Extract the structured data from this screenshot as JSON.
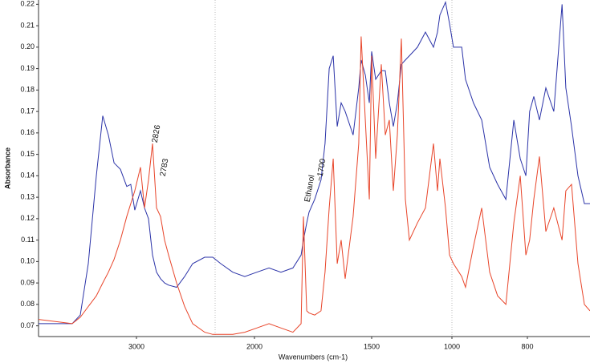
{
  "chart_data": {
    "type": "line",
    "xlabel": "Wavenumbers (cm-1)",
    "ylabel": "Absorbance",
    "xlim": [
      3830,
      634
    ],
    "xticks": [
      3000,
      2000,
      1500,
      1000,
      800
    ],
    "ylim": [
      0.065,
      0.222
    ],
    "yticks": [
      0.07,
      0.08,
      0.09,
      {
        "value": 0.1,
        "label": "0.10"
      },
      0.11,
      0.12,
      0.13,
      0.14,
      0.15,
      0.16,
      0.17,
      0.18,
      0.19,
      {
        "value": 0.2,
        "label": "0.20"
      },
      0.21,
      0.22
    ],
    "annotations": [
      "2826",
      "2783",
      "Ethanol",
      "~1700"
    ],
    "x": [
      3830,
      3544,
      3476,
      3408,
      3340,
      3286,
      3238,
      3190,
      3136,
      3082,
      3048,
      3014,
      2966,
      2932,
      2898,
      2864,
      2830,
      2796,
      2762,
      2728,
      2660,
      2592,
      2524,
      2422,
      2354,
      2286,
      2184,
      2082,
      1990,
      1938,
      1887,
      1836,
      1801,
      1791,
      1777,
      1767,
      1743,
      1716,
      1699,
      1681,
      1664,
      1647,
      1630,
      1613,
      1579,
      1555,
      1545,
      1527,
      1510,
      1500,
      1475,
      1440,
      1415,
      1390,
      1365,
      1340,
      1315,
      1290,
      1265,
      1215,
      1165,
      1115,
      1090,
      1075,
      1040,
      1015,
      996,
      974,
      964,
      943,
      921,
      900,
      879,
      857,
      836,
      819,
      804,
      794,
      783,
      768,
      751,
      730,
      708,
      698,
      683,
      666,
      649,
      634
    ],
    "series": [
      {
        "color": "#2b33a8",
        "values": [
          0.071,
          0.071,
          0.075,
          0.099,
          0.14,
          0.168,
          0.159,
          0.146,
          0.143,
          0.135,
          0.136,
          0.124,
          0.133,
          0.125,
          0.12,
          0.103,
          0.095,
          0.092,
          0.09,
          0.089,
          0.088,
          0.093,
          0.099,
          0.102,
          0.102,
          0.099,
          0.095,
          0.093,
          0.095,
          0.097,
          0.095,
          0.097,
          0.103,
          0.11,
          0.118,
          0.123,
          0.129,
          0.138,
          0.155,
          0.19,
          0.196,
          0.163,
          0.174,
          0.17,
          0.159,
          0.181,
          0.194,
          0.187,
          0.174,
          0.198,
          0.185,
          0.189,
          0.189,
          0.174,
          0.163,
          0.174,
          0.192,
          0.194,
          0.196,
          0.2,
          0.207,
          0.2,
          0.207,
          0.215,
          0.221,
          0.211,
          0.2,
          0.2,
          0.185,
          0.174,
          0.166,
          0.144,
          0.136,
          0.129,
          0.166,
          0.148,
          0.14,
          0.17,
          0.177,
          0.166,
          0.181,
          0.17,
          0.22,
          0.181,
          0.163,
          0.14,
          0.127,
          0.127
        ]
      },
      {
        "color": "#e8452a",
        "values": [
          0.073,
          0.071,
          0.074,
          0.079,
          0.084,
          0.09,
          0.095,
          0.101,
          0.11,
          0.121,
          0.127,
          0.133,
          0.144,
          0.125,
          0.138,
          0.155,
          0.125,
          0.121,
          0.11,
          0.103,
          0.09,
          0.079,
          0.071,
          0.067,
          0.066,
          0.066,
          0.066,
          0.067,
          0.069,
          0.071,
          0.069,
          0.067,
          0.071,
          0.121,
          0.077,
          0.076,
          0.075,
          0.077,
          0.095,
          0.125,
          0.148,
          0.099,
          0.11,
          0.092,
          0.121,
          0.155,
          0.205,
          0.166,
          0.129,
          0.196,
          0.148,
          0.192,
          0.159,
          0.166,
          0.133,
          0.159,
          0.204,
          0.129,
          0.11,
          0.118,
          0.125,
          0.155,
          0.133,
          0.148,
          0.125,
          0.103,
          0.099,
          0.093,
          0.088,
          0.107,
          0.125,
          0.095,
          0.084,
          0.08,
          0.118,
          0.14,
          0.103,
          0.11,
          0.129,
          0.149,
          0.114,
          0.125,
          0.11,
          0.133,
          0.136,
          0.099,
          0.08,
          0.077
        ]
      }
    ]
  }
}
